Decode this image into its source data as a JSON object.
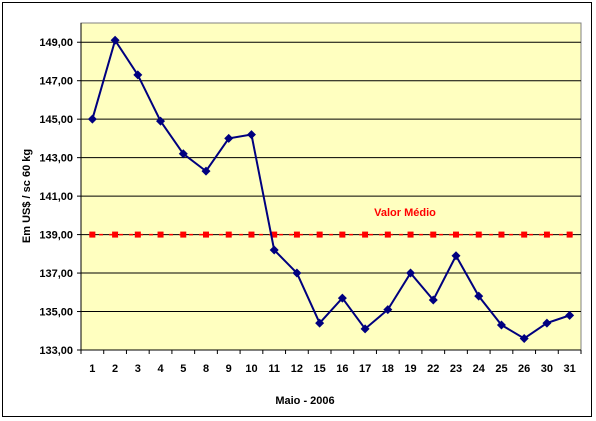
{
  "chart_data": {
    "type": "line",
    "title": "",
    "xlabel": "Maio - 2006",
    "ylabel": "Em US$ / sc 60 kg",
    "categories": [
      "1",
      "2",
      "3",
      "4",
      "5",
      "8",
      "9",
      "10",
      "11",
      "12",
      "15",
      "16",
      "17",
      "18",
      "19",
      "22",
      "23",
      "24",
      "25",
      "26",
      "30",
      "31"
    ],
    "series": [
      {
        "values": [
          145.0,
          149.1,
          147.3,
          144.9,
          143.2,
          142.3,
          144.0,
          144.2,
          138.2,
          137.0,
          134.4,
          135.7,
          134.1,
          135.1,
          137.0,
          135.6,
          137.9,
          135.8,
          134.3,
          133.6,
          134.4,
          134.8
        ],
        "color": "#00007f",
        "marker": "diamond"
      }
    ],
    "reference_line": {
      "label": "Valor Médio",
      "value": 139.0,
      "color": "#ff0000",
      "style": "square-markers"
    },
    "ylim": [
      133.0,
      150.0
    ],
    "yticks": [
      "133,00",
      "135,00",
      "137,00",
      "139,00",
      "141,00",
      "143,00",
      "145,00",
      "147,00",
      "149,00"
    ],
    "grid": "horizontal",
    "legend": "none",
    "plot_background": "#ffffc0"
  }
}
